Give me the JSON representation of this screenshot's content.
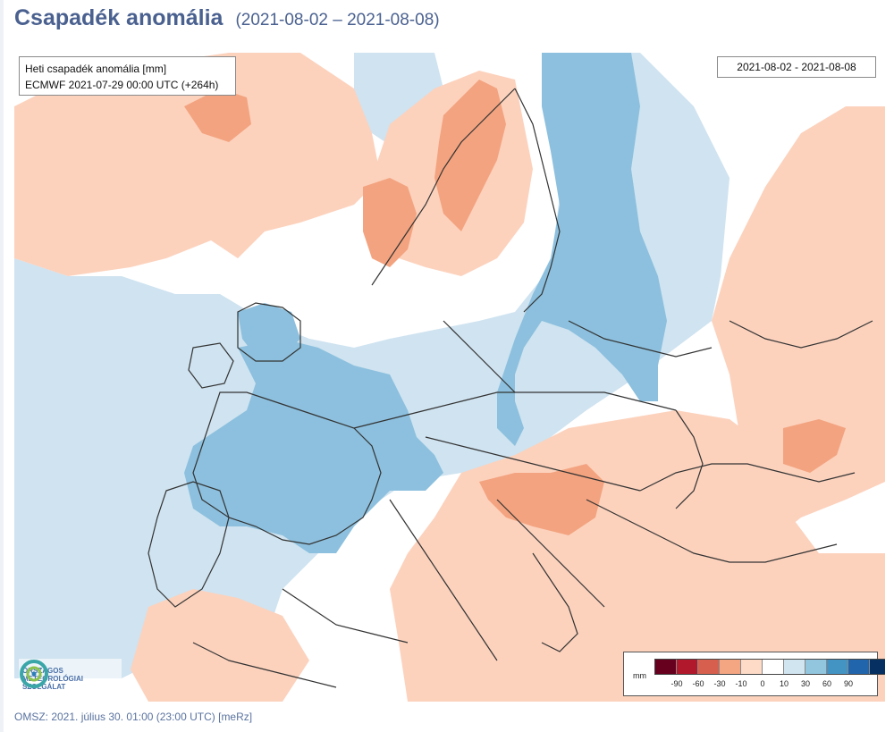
{
  "header": {
    "title": "Csapadék anomália",
    "period": "(2021-08-02 – 2021-08-08)"
  },
  "map": {
    "info_line1": "Heti csapadék anomália [mm]",
    "info_line2": "ECMWF 2021-07-29 00:00 UTC (+264h)",
    "date_range": "2021-08-02 - 2021-08-08",
    "icons": [
      "omsz-logo-icon"
    ]
  },
  "logo": {
    "line1": "ORSZÁGOS",
    "line2": "METEOROLÓGIAI",
    "line3": "SZOLGÁLAT"
  },
  "legend": {
    "unit": "mm",
    "labels": [
      "-90",
      "-60",
      "-30",
      "-10",
      "0",
      "10",
      "30",
      "60",
      "90"
    ],
    "colors": [
      "#67001f",
      "#b2182b",
      "#d6604d",
      "#f4a582",
      "#fddbc7",
      "#ffffff",
      "#d1e5f0",
      "#92c5de",
      "#4393c3",
      "#2166ac",
      "#053061"
    ]
  },
  "colors": {
    "dry_light": "#fcd2bd",
    "dry_medium": "#f3a37f",
    "wet_light": "#cfe3f0",
    "wet_medium": "#8cc0de",
    "border_line": "#333333",
    "title": "#4a6190"
  },
  "footer": {
    "text": "OMSZ: 2021. július 30. 01:00 (23:00  UTC)  [meRz]"
  }
}
